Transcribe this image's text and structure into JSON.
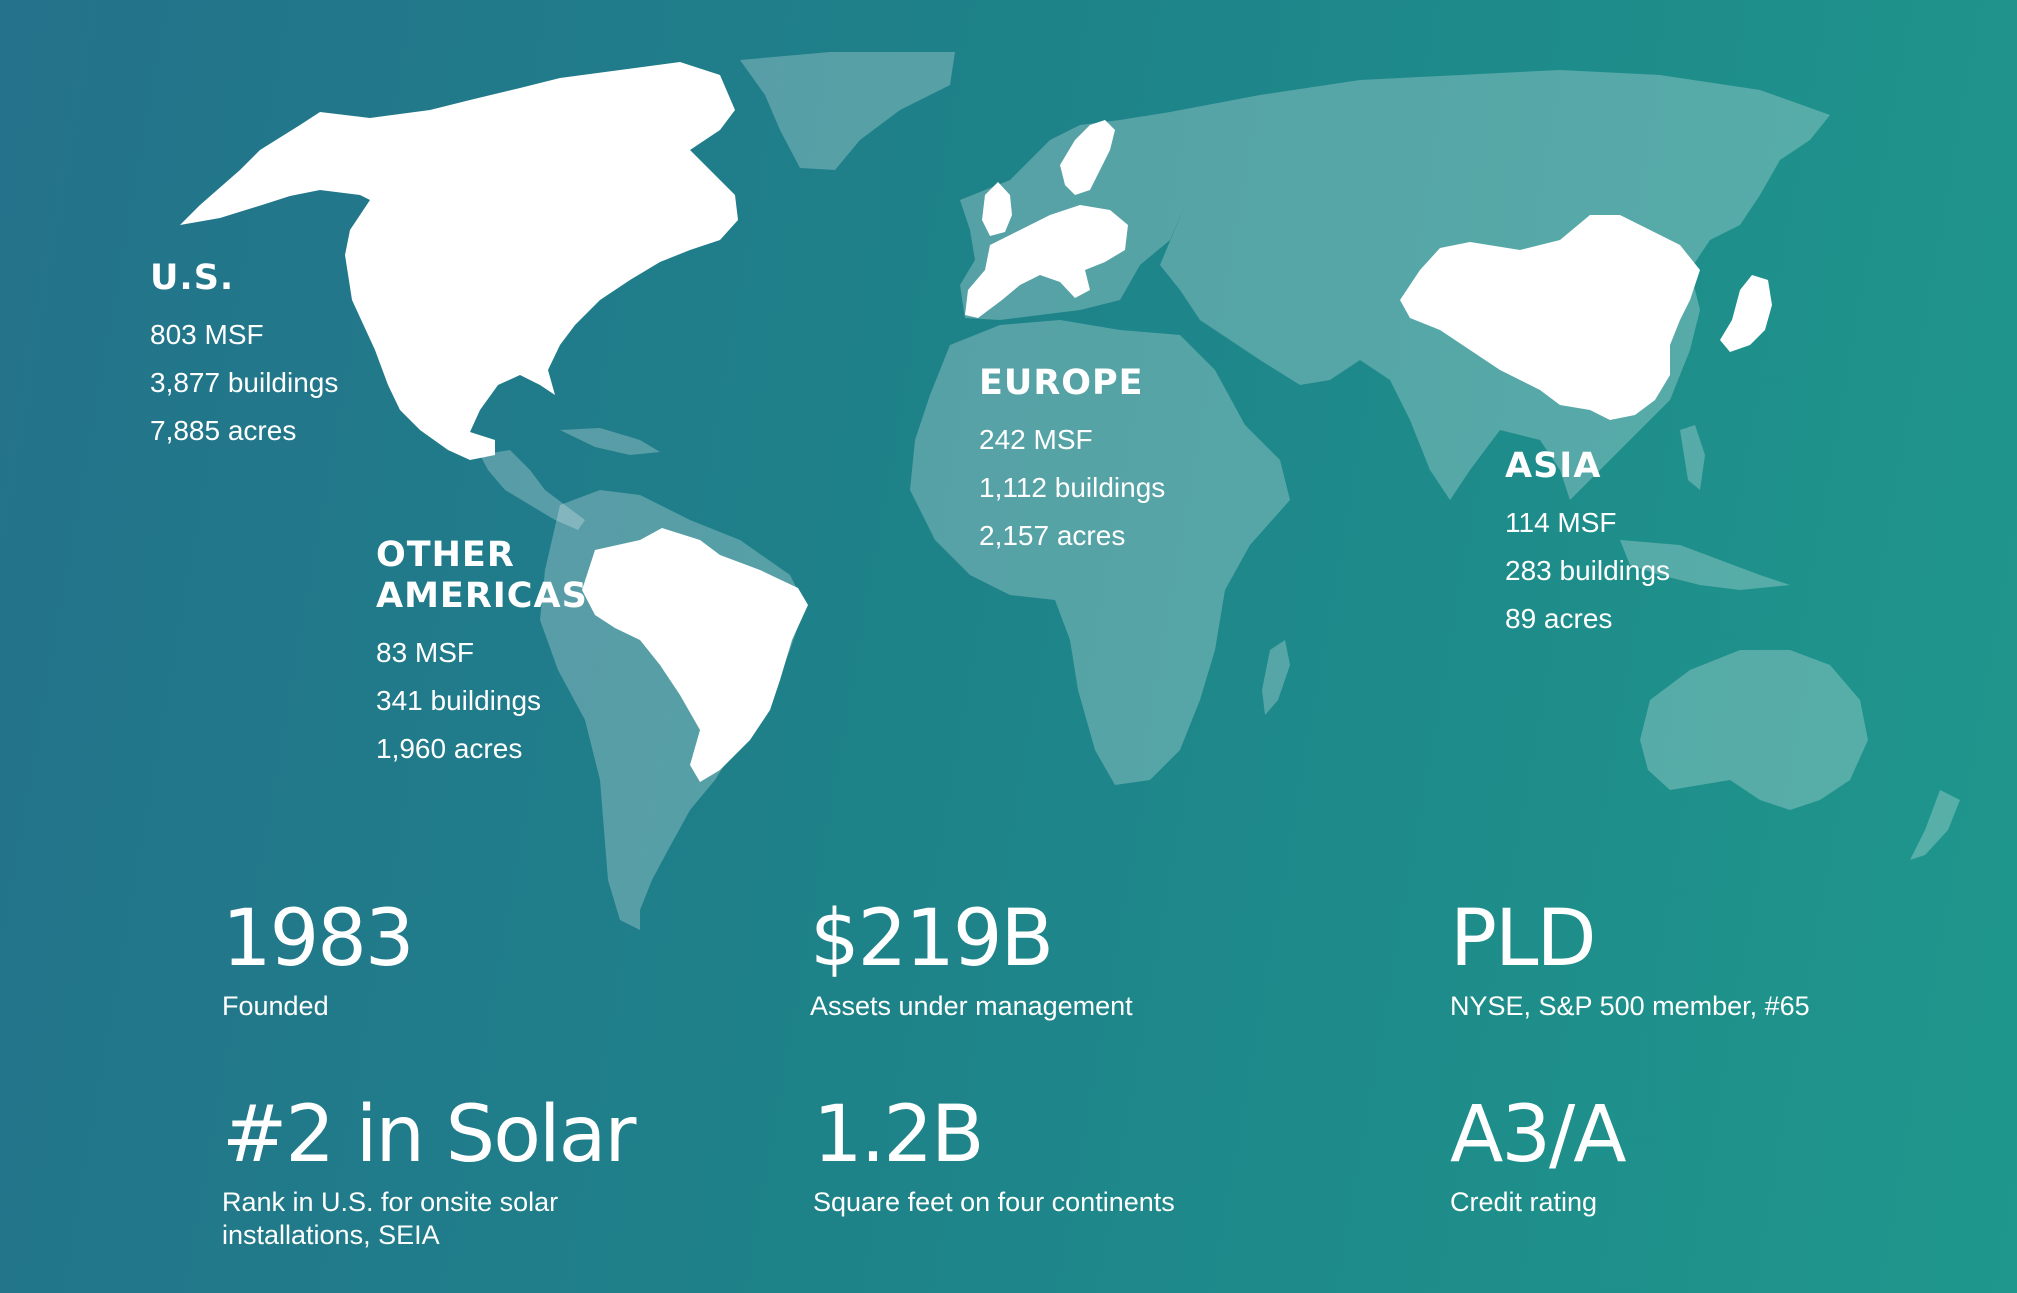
{
  "map": {
    "regions": [
      {
        "name": "U.S.",
        "msf": "803 MSF",
        "buildings": "3,877 buildings",
        "acres": "7,885 acres"
      },
      {
        "name_line1": "OTHER",
        "name_line2": "AMERICAS",
        "msf": "83 MSF",
        "buildings": "341 buildings",
        "acres": "1,960 acres"
      },
      {
        "name": "EUROPE",
        "msf": "242 MSF",
        "buildings": "1,112 buildings",
        "acres": "2,157 acres"
      },
      {
        "name": "ASIA",
        "msf": "114 MSF",
        "buildings": "283 buildings",
        "acres": "89 acres"
      }
    ],
    "colors": {
      "highlight": "#ffffff",
      "land": "rgba(255,255,255,0.25)",
      "background_start": "#24728b",
      "background_end": "#1f978c"
    }
  },
  "stats": [
    {
      "value": "1983",
      "caption": "Founded"
    },
    {
      "value": "$219B",
      "caption": "Assets under management"
    },
    {
      "value": "PLD",
      "caption": "NYSE, S&P 500 member, #65"
    },
    {
      "value": "#2 in Solar",
      "caption_line1": "Rank in U.S. for onsite solar",
      "caption_line2": "installations, SEIA"
    },
    {
      "value": "1.2B",
      "caption": "Square feet on four continents"
    },
    {
      "value": "A3/A",
      "caption": "Credit rating"
    }
  ]
}
